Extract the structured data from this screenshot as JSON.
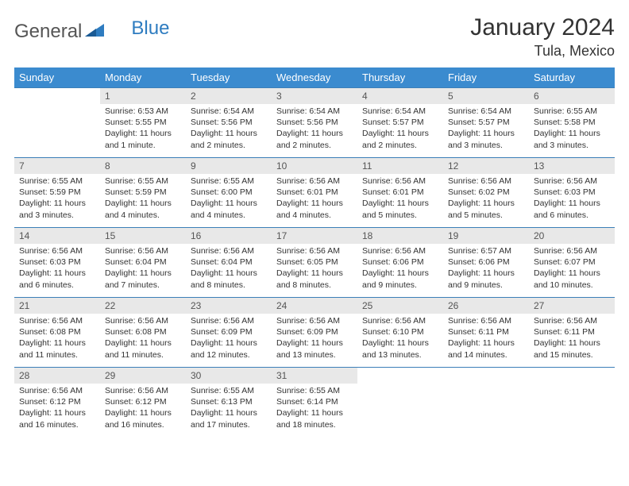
{
  "brand": {
    "part1": "General",
    "part2": "Blue"
  },
  "title": "January 2024",
  "location": "Tula, Mexico",
  "colors": {
    "header_bg": "#3b8bcf",
    "header_text": "#ffffff",
    "daynum_bg": "#e8e8e8",
    "rule": "#3b7fb8",
    "brand_blue": "#2e7cc0",
    "text": "#333333"
  },
  "weekdays": [
    "Sunday",
    "Monday",
    "Tuesday",
    "Wednesday",
    "Thursday",
    "Friday",
    "Saturday"
  ],
  "start_offset": 1,
  "days": [
    {
      "n": "1",
      "sr": "6:53 AM",
      "ss": "5:55 PM",
      "dl": "11 hours and 1 minute."
    },
    {
      "n": "2",
      "sr": "6:54 AM",
      "ss": "5:56 PM",
      "dl": "11 hours and 2 minutes."
    },
    {
      "n": "3",
      "sr": "6:54 AM",
      "ss": "5:56 PM",
      "dl": "11 hours and 2 minutes."
    },
    {
      "n": "4",
      "sr": "6:54 AM",
      "ss": "5:57 PM",
      "dl": "11 hours and 2 minutes."
    },
    {
      "n": "5",
      "sr": "6:54 AM",
      "ss": "5:57 PM",
      "dl": "11 hours and 3 minutes."
    },
    {
      "n": "6",
      "sr": "6:55 AM",
      "ss": "5:58 PM",
      "dl": "11 hours and 3 minutes."
    },
    {
      "n": "7",
      "sr": "6:55 AM",
      "ss": "5:59 PM",
      "dl": "11 hours and 3 minutes."
    },
    {
      "n": "8",
      "sr": "6:55 AM",
      "ss": "5:59 PM",
      "dl": "11 hours and 4 minutes."
    },
    {
      "n": "9",
      "sr": "6:55 AM",
      "ss": "6:00 PM",
      "dl": "11 hours and 4 minutes."
    },
    {
      "n": "10",
      "sr": "6:56 AM",
      "ss": "6:01 PM",
      "dl": "11 hours and 4 minutes."
    },
    {
      "n": "11",
      "sr": "6:56 AM",
      "ss": "6:01 PM",
      "dl": "11 hours and 5 minutes."
    },
    {
      "n": "12",
      "sr": "6:56 AM",
      "ss": "6:02 PM",
      "dl": "11 hours and 5 minutes."
    },
    {
      "n": "13",
      "sr": "6:56 AM",
      "ss": "6:03 PM",
      "dl": "11 hours and 6 minutes."
    },
    {
      "n": "14",
      "sr": "6:56 AM",
      "ss": "6:03 PM",
      "dl": "11 hours and 6 minutes."
    },
    {
      "n": "15",
      "sr": "6:56 AM",
      "ss": "6:04 PM",
      "dl": "11 hours and 7 minutes."
    },
    {
      "n": "16",
      "sr": "6:56 AM",
      "ss": "6:04 PM",
      "dl": "11 hours and 8 minutes."
    },
    {
      "n": "17",
      "sr": "6:56 AM",
      "ss": "6:05 PM",
      "dl": "11 hours and 8 minutes."
    },
    {
      "n": "18",
      "sr": "6:56 AM",
      "ss": "6:06 PM",
      "dl": "11 hours and 9 minutes."
    },
    {
      "n": "19",
      "sr": "6:57 AM",
      "ss": "6:06 PM",
      "dl": "11 hours and 9 minutes."
    },
    {
      "n": "20",
      "sr": "6:56 AM",
      "ss": "6:07 PM",
      "dl": "11 hours and 10 minutes."
    },
    {
      "n": "21",
      "sr": "6:56 AM",
      "ss": "6:08 PM",
      "dl": "11 hours and 11 minutes."
    },
    {
      "n": "22",
      "sr": "6:56 AM",
      "ss": "6:08 PM",
      "dl": "11 hours and 11 minutes."
    },
    {
      "n": "23",
      "sr": "6:56 AM",
      "ss": "6:09 PM",
      "dl": "11 hours and 12 minutes."
    },
    {
      "n": "24",
      "sr": "6:56 AM",
      "ss": "6:09 PM",
      "dl": "11 hours and 13 minutes."
    },
    {
      "n": "25",
      "sr": "6:56 AM",
      "ss": "6:10 PM",
      "dl": "11 hours and 13 minutes."
    },
    {
      "n": "26",
      "sr": "6:56 AM",
      "ss": "6:11 PM",
      "dl": "11 hours and 14 minutes."
    },
    {
      "n": "27",
      "sr": "6:56 AM",
      "ss": "6:11 PM",
      "dl": "11 hours and 15 minutes."
    },
    {
      "n": "28",
      "sr": "6:56 AM",
      "ss": "6:12 PM",
      "dl": "11 hours and 16 minutes."
    },
    {
      "n": "29",
      "sr": "6:56 AM",
      "ss": "6:12 PM",
      "dl": "11 hours and 16 minutes."
    },
    {
      "n": "30",
      "sr": "6:55 AM",
      "ss": "6:13 PM",
      "dl": "11 hours and 17 minutes."
    },
    {
      "n": "31",
      "sr": "6:55 AM",
      "ss": "6:14 PM",
      "dl": "11 hours and 18 minutes."
    }
  ],
  "labels": {
    "sunrise": "Sunrise:",
    "sunset": "Sunset:",
    "daylight": "Daylight:"
  }
}
